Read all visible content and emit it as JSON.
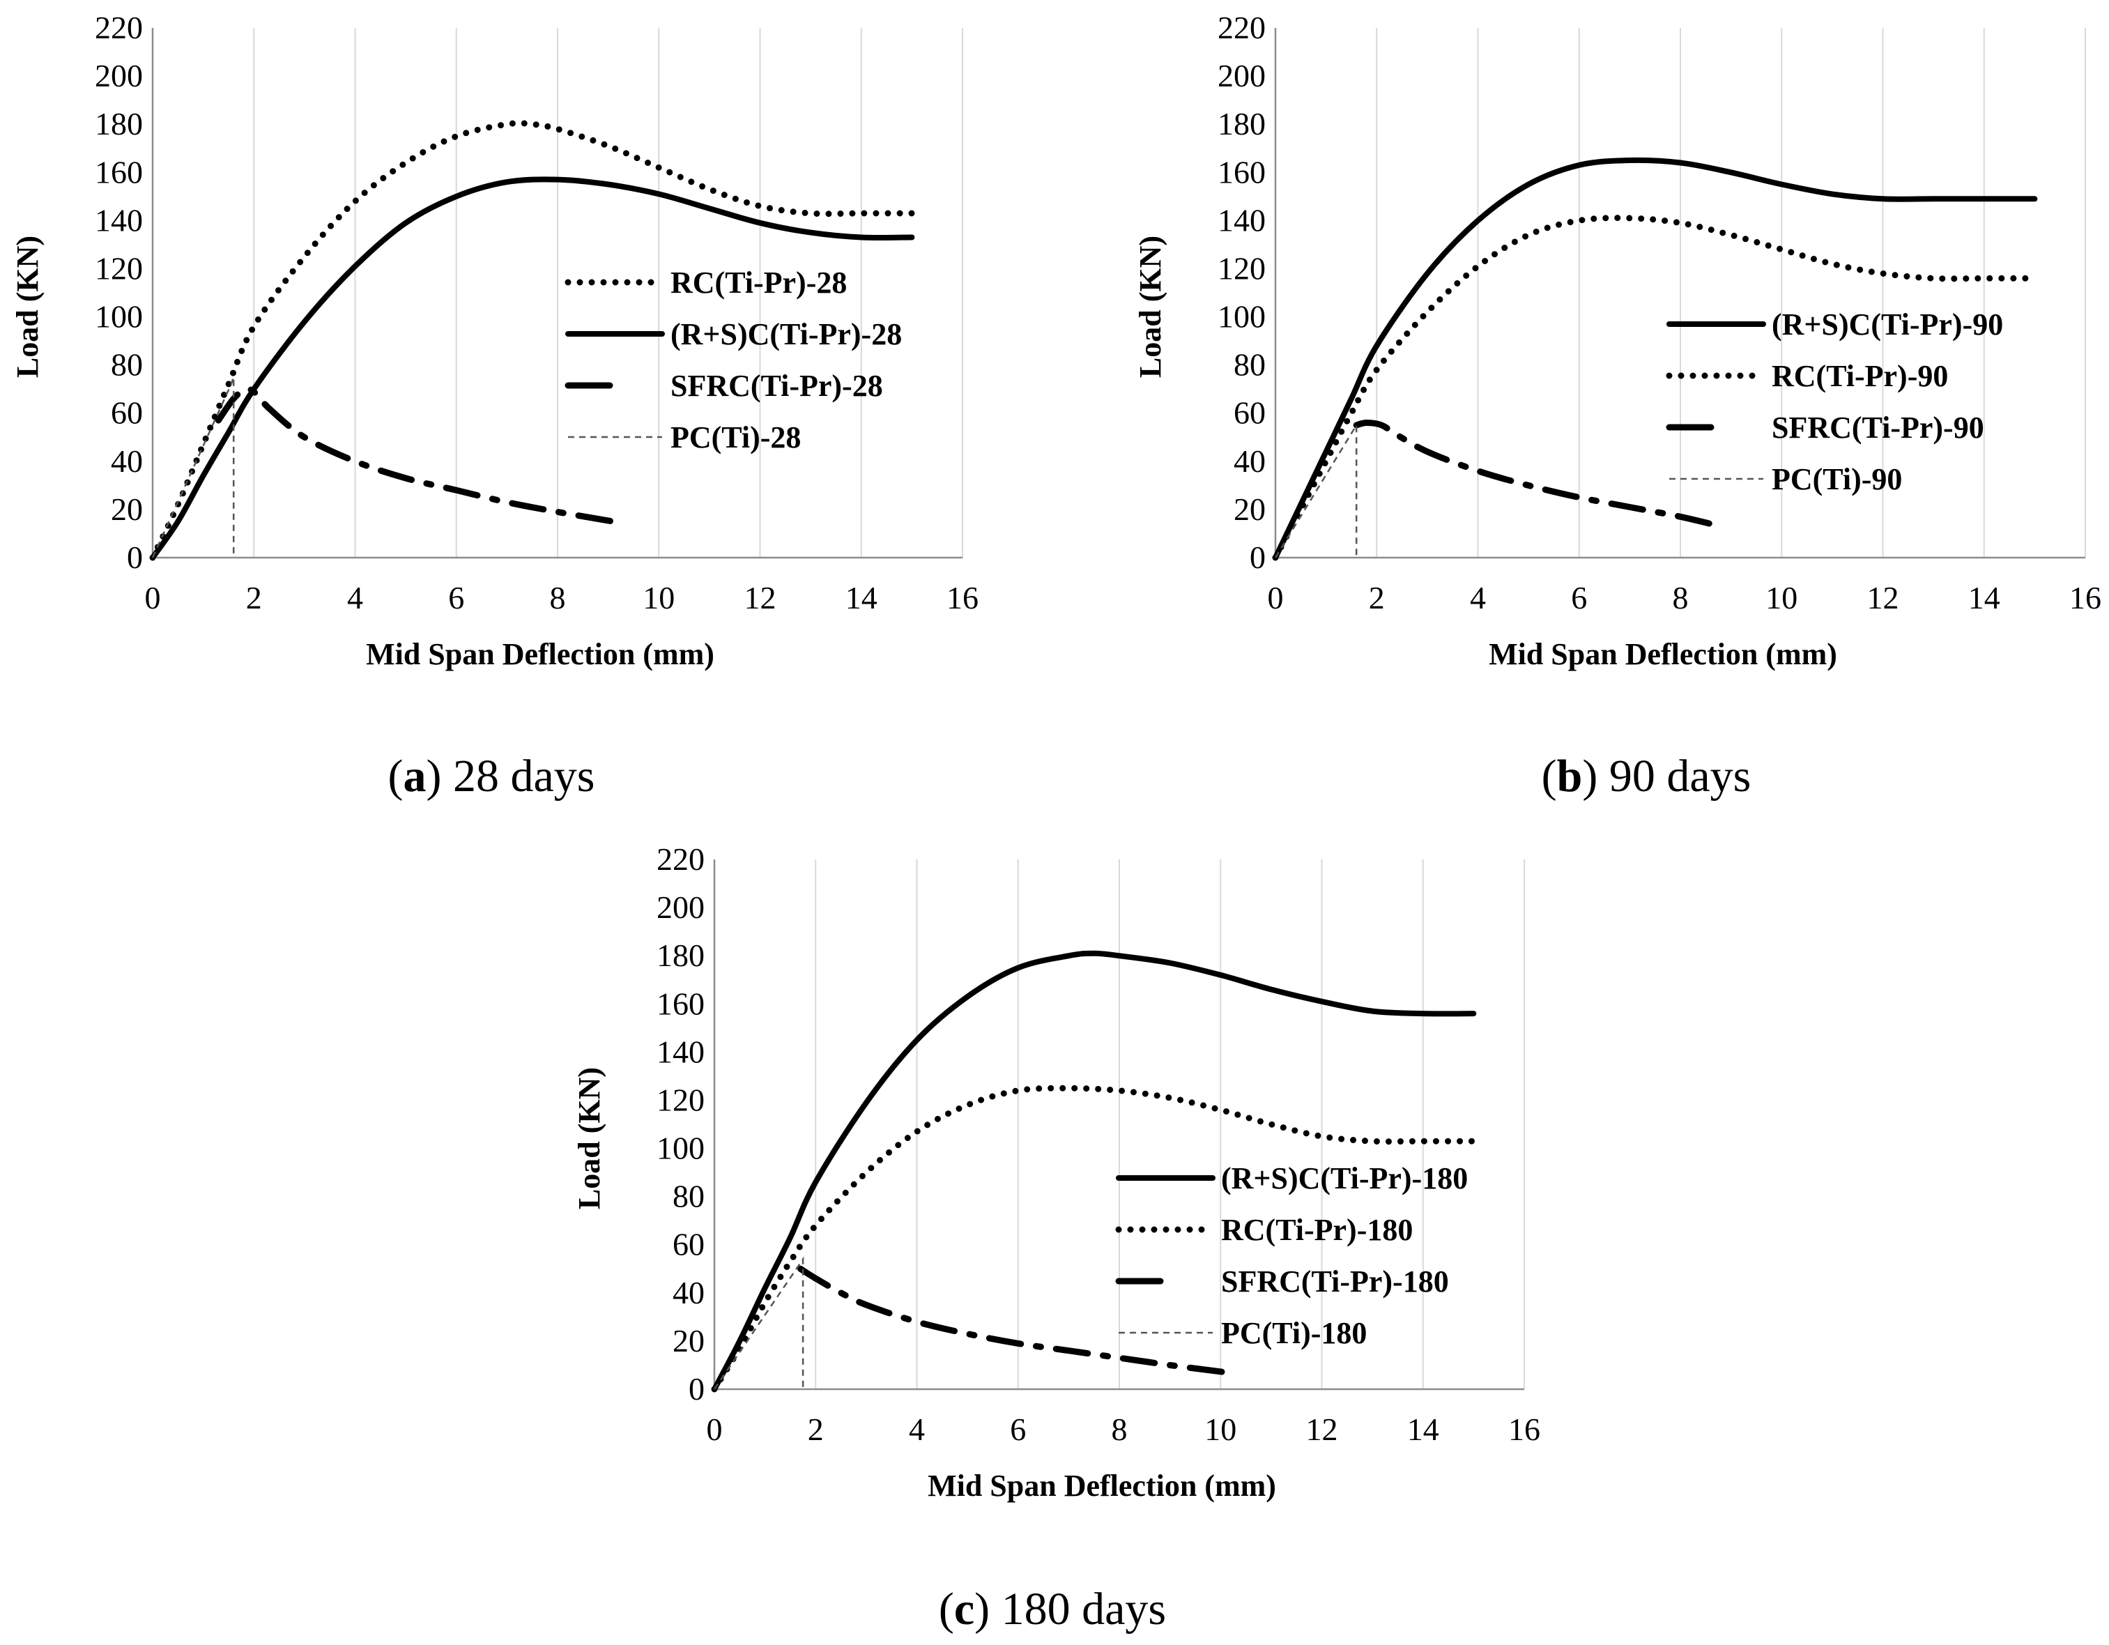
{
  "chart_data": [
    {
      "type": "line",
      "caption": {
        "open": "(",
        "letter": "a",
        "rest": ") 28 days"
      },
      "xlabel": "Mid Span Deflection (mm)",
      "ylabel": "Load (KN)",
      "xlim": [
        0,
        16
      ],
      "ylim": [
        0,
        220
      ],
      "xticks": [
        0,
        2,
        4,
        6,
        8,
        10,
        12,
        14,
        16
      ],
      "yticks": [
        0,
        20,
        40,
        60,
        80,
        100,
        120,
        140,
        160,
        180,
        200,
        220
      ],
      "grid": "vertical",
      "legend_position": "right",
      "series": [
        {
          "name": "RC(Ti-Pr)-28",
          "style": "dotted",
          "x": [
            0,
            0.5,
            1,
            1.5,
            2,
            3,
            4,
            5,
            6,
            7,
            7.5,
            8,
            9,
            10,
            11,
            12,
            13,
            14,
            15
          ],
          "y": [
            0,
            22,
            47,
            72,
            96,
            125,
            148,
            164,
            175,
            180,
            180,
            178,
            171,
            162,
            153,
            146,
            143,
            143,
            143
          ]
        },
        {
          "name": "(R+S)C(Ti-Pr)-28",
          "style": "solid",
          "x": [
            0,
            0.5,
            1,
            1.5,
            2,
            3,
            4,
            5,
            6,
            7,
            8,
            9,
            10,
            11,
            12,
            13,
            14,
            15
          ],
          "y": [
            0,
            15,
            34,
            52,
            70,
            98,
            121,
            139,
            150,
            156,
            157,
            155,
            151,
            145,
            139,
            135,
            133,
            133
          ]
        },
        {
          "name": "SFRC(Ti-Pr)-28",
          "style": "dashdot",
          "x": [
            1.3,
            1.6,
            1.85,
            2.05,
            2.3,
            3,
            4,
            5,
            6,
            7,
            8,
            9.1
          ],
          "y": [
            57,
            66,
            70,
            68,
            62,
            50,
            40,
            33,
            28,
            23,
            19,
            15
          ]
        },
        {
          "name": "PC(Ti)-28",
          "style": "thin-dashed",
          "x": [
            0,
            1.55,
            1.6,
            1.6
          ],
          "y": [
            0,
            72,
            75,
            0
          ]
        }
      ]
    },
    {
      "type": "line",
      "caption": {
        "open": "(",
        "letter": "b",
        "rest": ") 90 days"
      },
      "xlabel": "Mid Span Deflection (mm)",
      "ylabel": "Load (KN)",
      "xlim": [
        0,
        16
      ],
      "ylim": [
        0,
        220
      ],
      "xticks": [
        0,
        2,
        4,
        6,
        8,
        10,
        12,
        14,
        16
      ],
      "yticks": [
        0,
        20,
        40,
        60,
        80,
        100,
        120,
        140,
        160,
        180,
        200,
        220
      ],
      "grid": "vertical",
      "legend_position": "right",
      "series": [
        {
          "name": "(R+S)C(Ti-Pr)-90",
          "style": "solid",
          "x": [
            0,
            0.5,
            1,
            1.5,
            2,
            3,
            4,
            5,
            6,
            7,
            8,
            9,
            10,
            11,
            12,
            13,
            14,
            15
          ],
          "y": [
            0,
            22,
            44,
            66,
            88,
            118,
            140,
            155,
            163,
            165,
            164,
            160,
            155,
            151,
            149,
            149,
            149,
            149
          ]
        },
        {
          "name": "RC(Ti-Pr)-90",
          "style": "dotted",
          "x": [
            0,
            0.5,
            1,
            1.5,
            2,
            3,
            4,
            5,
            6,
            7,
            8,
            9,
            10,
            11,
            12,
            13,
            14,
            15
          ],
          "y": [
            0,
            20,
            40,
            60,
            78,
            102,
            121,
            134,
            140,
            141,
            139,
            134,
            128,
            122,
            118,
            116,
            116,
            116
          ]
        },
        {
          "name": "SFRC(Ti-Pr)-90",
          "style": "dashdot",
          "x": [
            1.6,
            1.8,
            2.1,
            2.4,
            3,
            4,
            5,
            6,
            7,
            8,
            8.6
          ],
          "y": [
            55,
            56,
            55,
            51,
            44,
            36,
            30,
            25,
            21,
            17,
            14
          ]
        },
        {
          "name": "PC(Ti)-90",
          "style": "thin-dashed",
          "x": [
            0,
            1.6,
            1.6
          ],
          "y": [
            0,
            55,
            0
          ]
        }
      ]
    },
    {
      "type": "line",
      "caption": {
        "open": "(",
        "letter": "c",
        "rest": ") 180 days"
      },
      "xlabel": "Mid Span Deflection (mm)",
      "ylabel": "Load (KN)",
      "xlim": [
        0,
        16
      ],
      "ylim": [
        0,
        220
      ],
      "xticks": [
        0,
        2,
        4,
        6,
        8,
        10,
        12,
        14,
        16
      ],
      "yticks": [
        0,
        20,
        40,
        60,
        80,
        100,
        120,
        140,
        160,
        180,
        200,
        220
      ],
      "grid": "vertical",
      "legend_position": "bottom-right",
      "series": [
        {
          "name": "(R+S)C(Ti-Pr)-180",
          "style": "solid",
          "x": [
            0,
            0.5,
            1,
            1.5,
            2,
            3,
            4,
            5,
            6,
            7,
            7.5,
            8,
            9,
            10,
            11,
            12,
            13,
            14,
            15
          ],
          "y": [
            0,
            20,
            42,
            63,
            86,
            119,
            145,
            163,
            175,
            180,
            181,
            180,
            177,
            172,
            166,
            161,
            157,
            156,
            156
          ]
        },
        {
          "name": "RC(Ti-Pr)-180",
          "style": "dotted",
          "x": [
            0,
            0.5,
            1,
            1.5,
            2,
            3,
            4,
            5,
            6,
            7,
            8,
            9,
            10,
            11,
            12,
            13,
            14,
            15
          ],
          "y": [
            0,
            17,
            36,
            53,
            68,
            90,
            107,
            118,
            124,
            125,
            124,
            121,
            116,
            110,
            105,
            103,
            103,
            103
          ]
        },
        {
          "name": "SFRC(Ti-Pr)-180",
          "style": "dashdot",
          "x": [
            1.7,
            2,
            2.5,
            3,
            4,
            5,
            6,
            7,
            8,
            9,
            10.1
          ],
          "y": [
            50,
            46,
            40,
            35,
            28,
            23,
            19,
            16,
            13,
            10,
            7
          ]
        },
        {
          "name": "PC(Ti)-180",
          "style": "thin-dashed",
          "x": [
            0,
            1.75,
            1.75
          ],
          "y": [
            0,
            54,
            0
          ]
        }
      ]
    }
  ]
}
